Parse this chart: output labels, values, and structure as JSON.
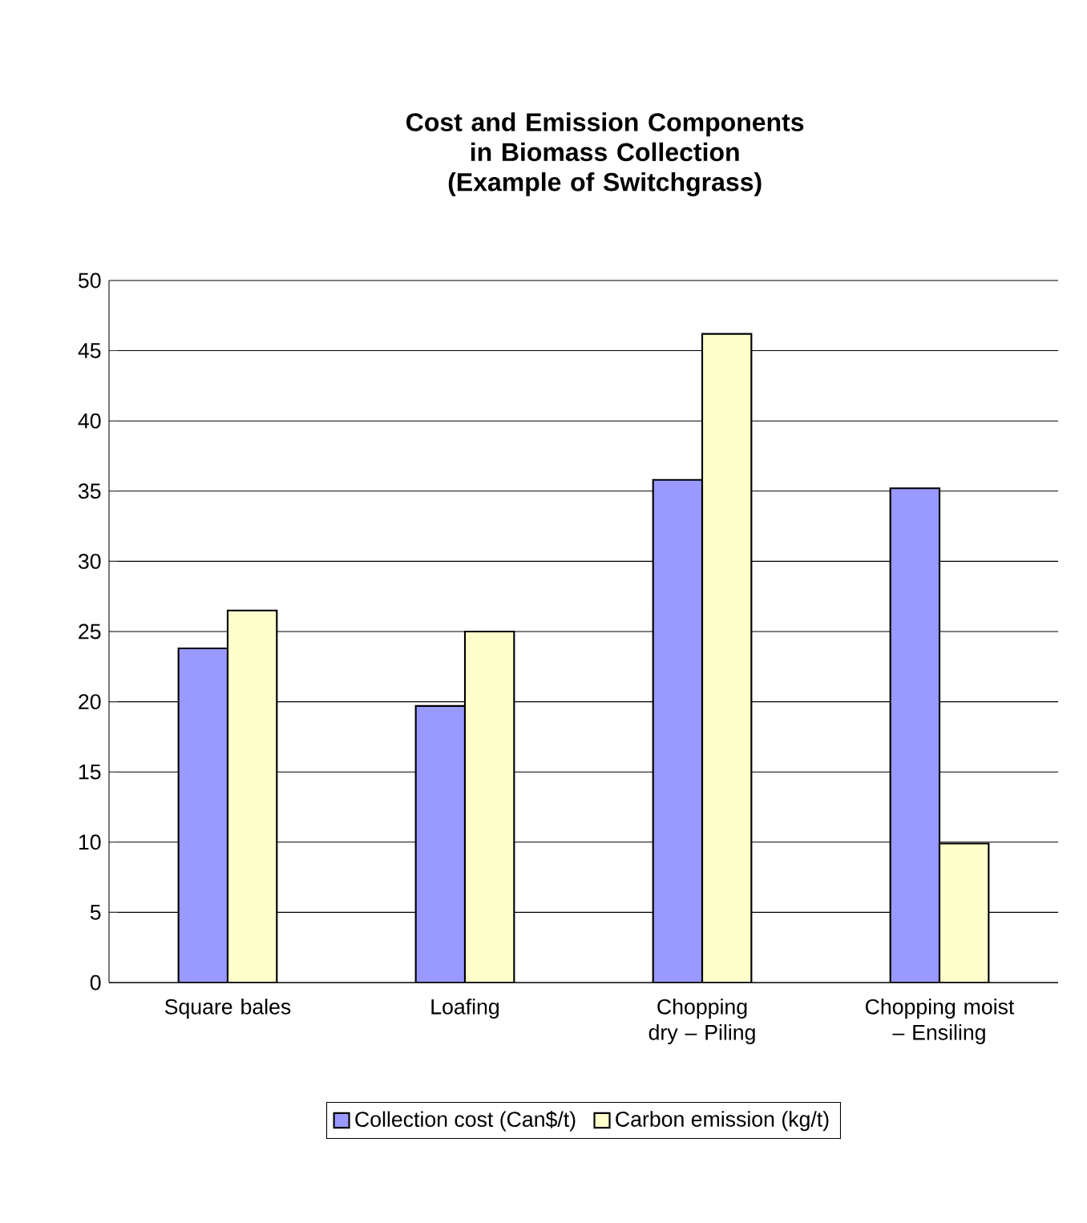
{
  "chart_data": {
    "type": "bar",
    "title": "Cost and Emission Components in Biomass Collection",
    "subtitle": "(Example of Switchgrass)",
    "categories": [
      "Square bales",
      "Loafing",
      "Chopping dry – Piling",
      "Chopping moist – Ensiling"
    ],
    "series": [
      {
        "name": "Collection cost (Can$/t)",
        "color": "#9999ff",
        "values": [
          23.8,
          19.7,
          35.8,
          35.2
        ]
      },
      {
        "name": "Carbon emission (kg/t)",
        "color": "#ffffcc",
        "values": [
          26.5,
          25.0,
          46.2,
          9.9
        ]
      }
    ],
    "ylim": [
      0,
      50
    ],
    "yticks": [
      0,
      5,
      10,
      15,
      20,
      25,
      30,
      35,
      40,
      45,
      50
    ],
    "grid": "y",
    "legend": "bottom"
  }
}
